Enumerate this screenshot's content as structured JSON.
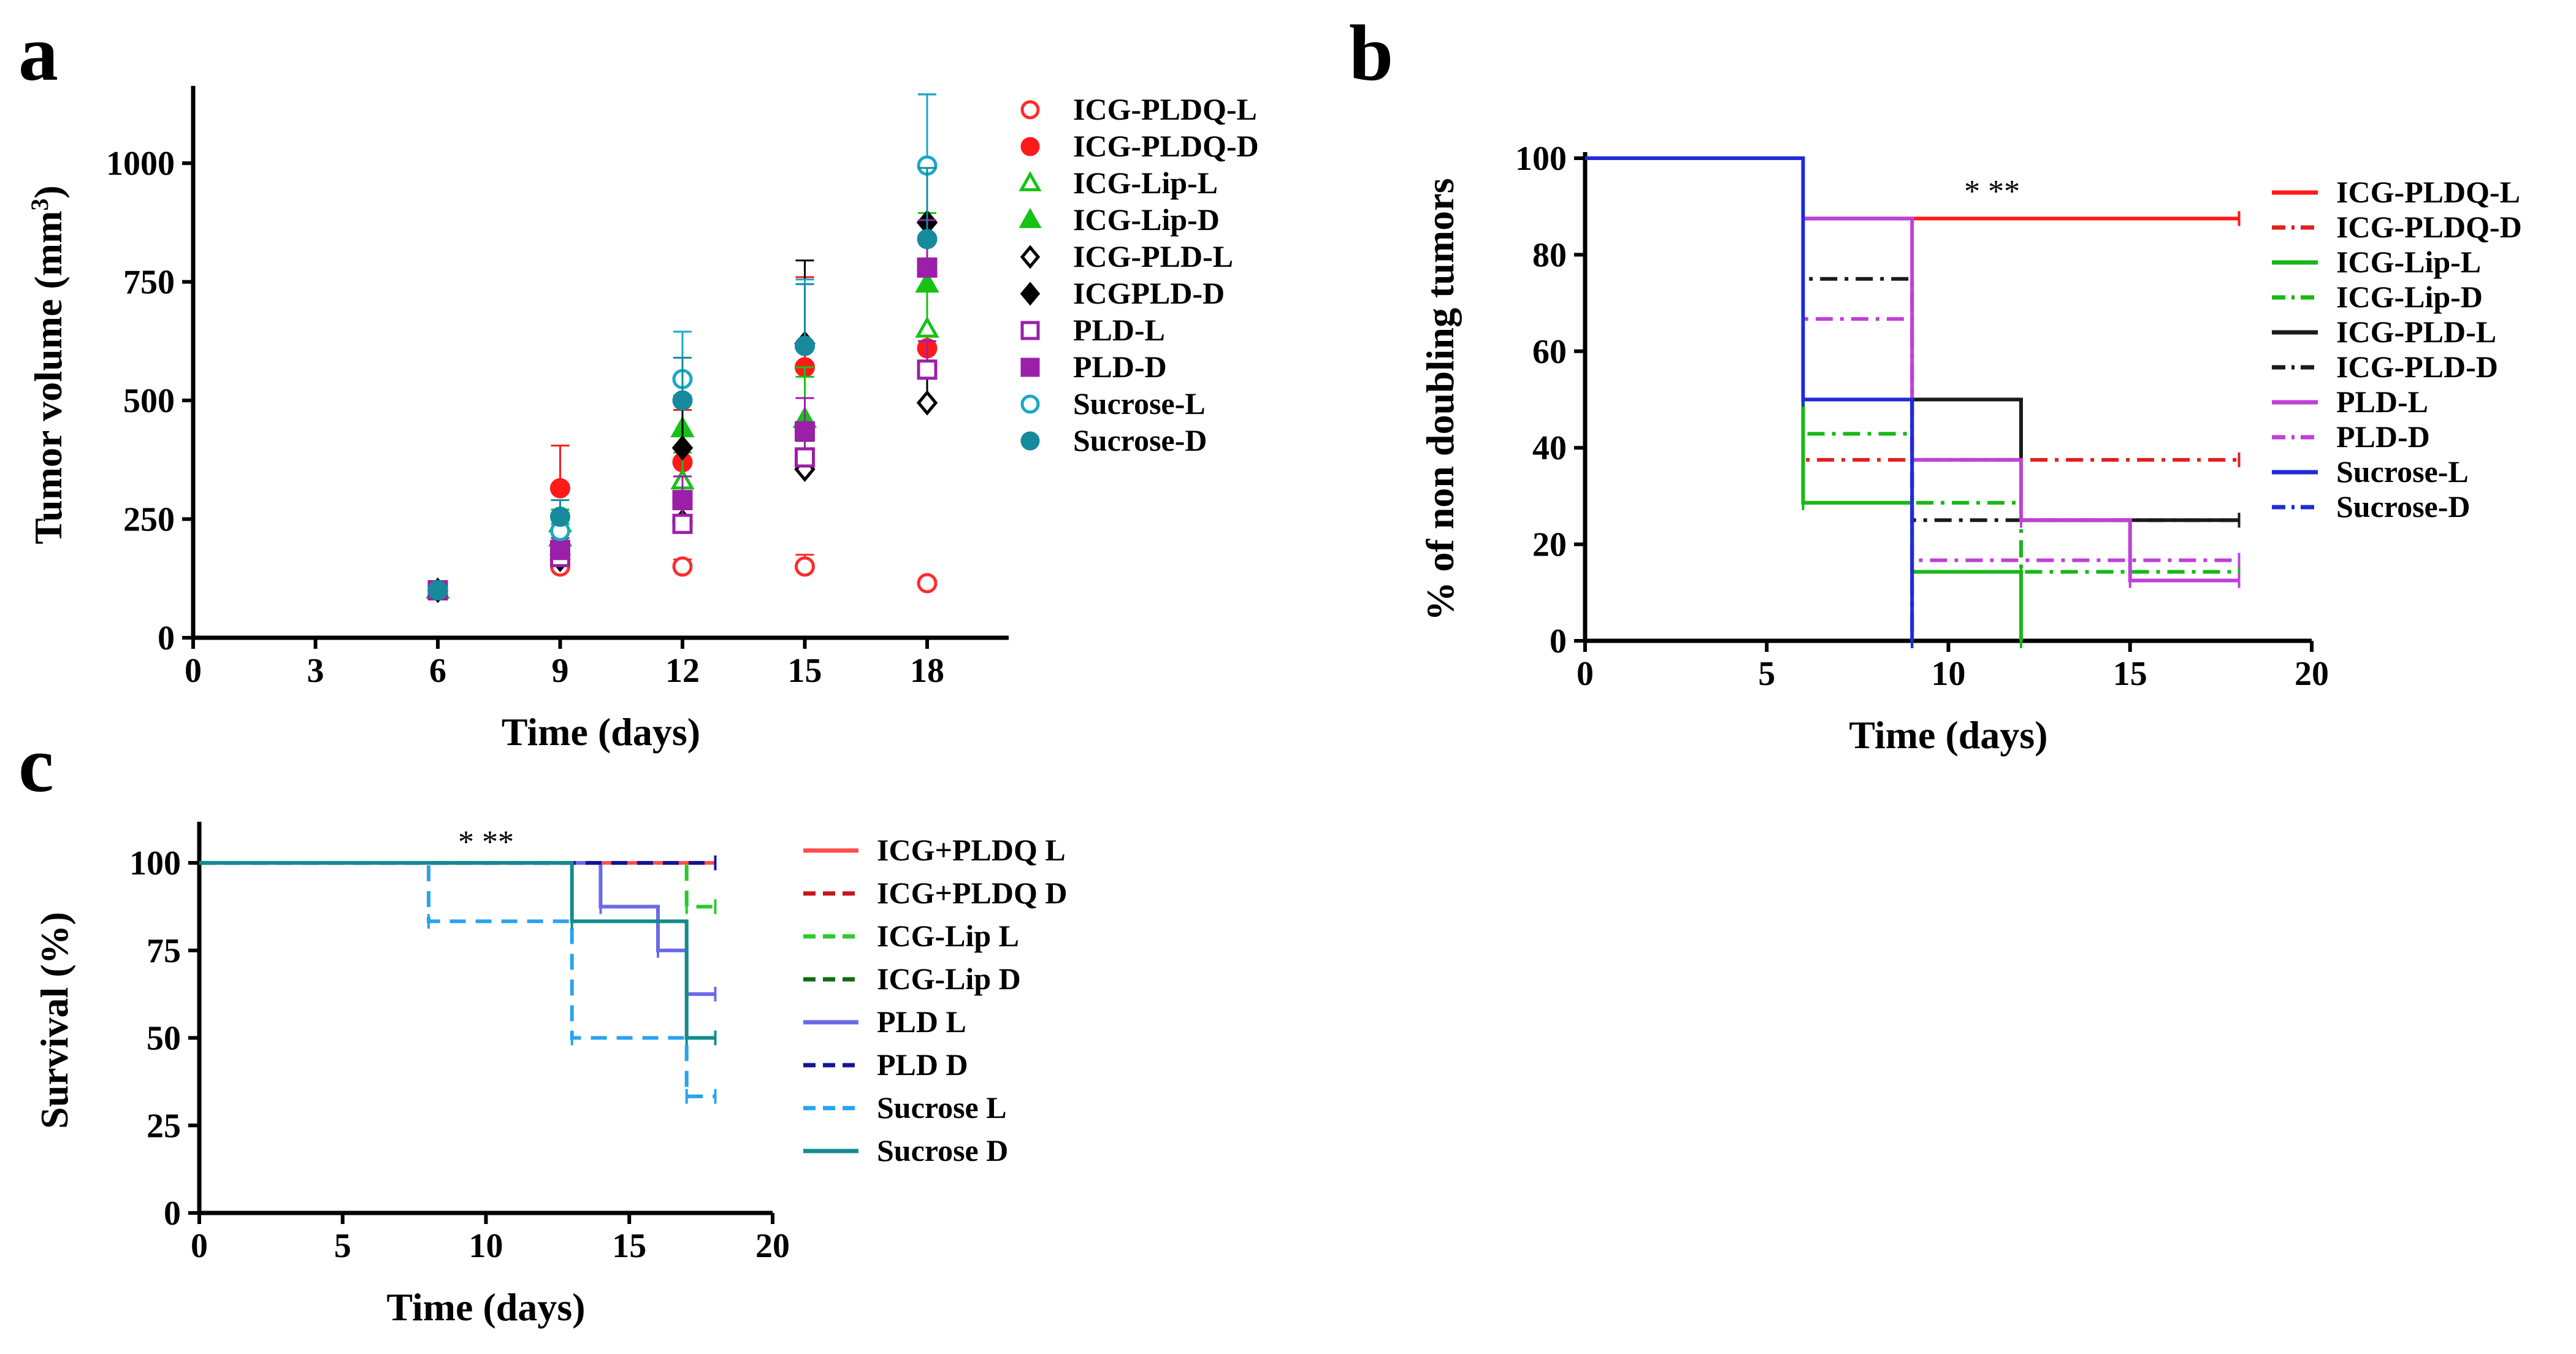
{
  "chart_data": [
    {
      "panel": "a",
      "type": "scatter",
      "xlabel": "Time (days)",
      "ylabel": "Tumor volume (mm3)",
      "xlim": [
        0,
        20
      ],
      "ylim": [
        0,
        1150
      ],
      "xticks": [
        0,
        3,
        6,
        9,
        12,
        15,
        18
      ],
      "yticks": [
        0,
        250,
        500,
        750,
        1000
      ],
      "legend_position": "right",
      "series": [
        {
          "name": "ICG-PLDQ-L",
          "color": "#ff2b2b",
          "marker": "circle-open",
          "x": [
            6,
            9,
            12,
            15,
            18
          ],
          "y": [
            100,
            150,
            150,
            150,
            115
          ],
          "err": [
            0,
            10,
            15,
            25,
            0
          ]
        },
        {
          "name": "ICG-PLDQ-D",
          "color": "#ff1a1a",
          "marker": "circle-filled",
          "x": [
            6,
            9,
            12,
            15,
            18
          ],
          "y": [
            100,
            315,
            370,
            570,
            610
          ],
          "err": [
            0,
            90,
            110,
            190,
            160
          ]
        },
        {
          "name": "ICG-Lip-L",
          "color": "#16c216",
          "marker": "triangle-open",
          "x": [
            6,
            9,
            12,
            15,
            18
          ],
          "y": [
            100,
            210,
            330,
            460,
            650
          ],
          "err": [
            0,
            30,
            60,
            90,
            120
          ]
        },
        {
          "name": "ICG-Lip-D",
          "color": "#16c216",
          "marker": "triangle-filled",
          "x": [
            6,
            9,
            12,
            15,
            18
          ],
          "y": [
            100,
            240,
            440,
            460,
            745
          ],
          "err": [
            0,
            30,
            70,
            110,
            150
          ]
        },
        {
          "name": "ICG-PLD-L",
          "color": "#000000",
          "marker": "diamond-open",
          "x": [
            6,
            9,
            12,
            15,
            18
          ],
          "y": [
            100,
            165,
            245,
            355,
            495
          ],
          "err": [
            0,
            20,
            40,
            60,
            80
          ]
        },
        {
          "name": "ICGPLD-D",
          "color": "#000000",
          "marker": "diamond-filled",
          "x": [
            6,
            9,
            12,
            15,
            18
          ],
          "y": [
            100,
            175,
            400,
            620,
            875
          ],
          "err": [
            0,
            25,
            100,
            175,
            270
          ]
        },
        {
          "name": "PLD-L",
          "color": "#9b1fa8",
          "marker": "square-open",
          "x": [
            6,
            9,
            12,
            15,
            18
          ],
          "y": [
            100,
            170,
            240,
            380,
            565
          ],
          "err": [
            0,
            20,
            40,
            50,
            60
          ]
        },
        {
          "name": "PLD-D",
          "color": "#9b1fa8",
          "marker": "square-filled",
          "x": [
            6,
            9,
            12,
            15,
            18
          ],
          "y": [
            100,
            185,
            290,
            435,
            780
          ],
          "err": [
            0,
            25,
            50,
            70,
            100
          ]
        },
        {
          "name": "Sucrose-L",
          "color": "#17a9c9",
          "marker": "circle-open",
          "x": [
            6,
            9,
            12,
            15,
            18
          ],
          "y": [
            100,
            225,
            545,
            615,
            995
          ],
          "err": [
            0,
            35,
            100,
            140,
            150
          ]
        },
        {
          "name": "Sucrose-D",
          "color": "#168a9c",
          "marker": "circle-filled",
          "x": [
            6,
            9,
            12,
            15,
            18
          ],
          "y": [
            100,
            255,
            500,
            615,
            840
          ],
          "err": [
            0,
            35,
            90,
            130,
            150
          ]
        }
      ]
    },
    {
      "panel": "b",
      "type": "line",
      "xlabel": "Time (days)",
      "ylabel": "% of non doubling tumors",
      "xlim": [
        0,
        20
      ],
      "ylim": [
        0,
        100
      ],
      "xticks": [
        0,
        5,
        10,
        15,
        20
      ],
      "yticks": [
        0,
        20,
        40,
        60,
        80,
        100
      ],
      "annotation": "* **",
      "annotation_x": 11.2,
      "annotation_y": 91,
      "legend_position": "right",
      "series": [
        {
          "name": "ICG-PLDQ-L",
          "color": "#ff1a1a",
          "dash": "solid",
          "x": [
            0,
            6,
            18
          ],
          "y": [
            100,
            87.5,
            87.5
          ]
        },
        {
          "name": "ICG-PLDQ-D",
          "color": "#e02020",
          "dash": "dashdot",
          "x": [
            0,
            6,
            18
          ],
          "y": [
            100,
            37.5,
            37.5
          ]
        },
        {
          "name": "ICG-Lip-L",
          "color": "#16b816",
          "dash": "solid",
          "x": [
            0,
            6,
            9,
            12
          ],
          "y": [
            100,
            28.6,
            14.3,
            0
          ]
        },
        {
          "name": "ICG-Lip-D",
          "color": "#16b816",
          "dash": "dashdot",
          "x": [
            0,
            6,
            9,
            12,
            18
          ],
          "y": [
            100,
            42.9,
            28.6,
            14.3,
            14.3
          ]
        },
        {
          "name": "ICG-PLD-L",
          "color": "#1a1a1a",
          "dash": "solid",
          "x": [
            0,
            6,
            12,
            18
          ],
          "y": [
            100,
            50,
            25,
            25
          ]
        },
        {
          "name": "ICG-PLD-D",
          "color": "#1a1a1a",
          "dash": "dashdot",
          "x": [
            0,
            6,
            9,
            18
          ],
          "y": [
            100,
            75,
            25,
            25
          ]
        },
        {
          "name": "PLD-L",
          "color": "#c040d8",
          "dash": "solid",
          "x": [
            0,
            6,
            9,
            12,
            15,
            18
          ],
          "y": [
            100,
            87.5,
            37.5,
            25,
            12.5,
            12.5
          ]
        },
        {
          "name": "PLD-D",
          "color": "#c040d8",
          "dash": "dashdot",
          "x": [
            0,
            6,
            9,
            18
          ],
          "y": [
            100,
            66.7,
            16.7,
            16.7
          ]
        },
        {
          "name": "Sucrose-L",
          "color": "#1f2bd8",
          "dash": "solid",
          "x": [
            0,
            6,
            9
          ],
          "y": [
            100,
            50,
            0
          ]
        },
        {
          "name": "Sucrose-D",
          "color": "#1f2bd8",
          "dash": "dashdot",
          "x": [
            0,
            6,
            9
          ],
          "y": [
            100,
            50,
            0
          ]
        }
      ]
    },
    {
      "panel": "c",
      "type": "line",
      "xlabel": "Time (days)",
      "ylabel": "Survival (%)",
      "xlim": [
        0,
        20
      ],
      "ylim": [
        0,
        110
      ],
      "xticks": [
        0,
        5,
        10,
        15,
        20
      ],
      "yticks": [
        0,
        25,
        50,
        75,
        100
      ],
      "annotation": "* **",
      "annotation_x": 10,
      "annotation_y": 103,
      "legend_position": "right",
      "series": [
        {
          "name": "ICG+PLDQ L",
          "color": "#ff4d4d",
          "dash": "solid",
          "x": [
            0,
            18
          ],
          "y": [
            100,
            100
          ]
        },
        {
          "name": "ICG+PLDQ D",
          "color": "#c8141e",
          "dash": "dashed",
          "x": [
            0,
            18
          ],
          "y": [
            100,
            100
          ]
        },
        {
          "name": "ICG-Lip L",
          "color": "#2cc92c",
          "dash": "dashed",
          "x": [
            0,
            17,
            18
          ],
          "y": [
            100,
            87.5,
            87.5
          ]
        },
        {
          "name": "ICG-Lip D",
          "color": "#106b10",
          "dash": "dashed",
          "x": [
            0,
            18
          ],
          "y": [
            100,
            100
          ]
        },
        {
          "name": "PLD L",
          "color": "#6a6ae8",
          "dash": "solid",
          "x": [
            0,
            14,
            16,
            17,
            18
          ],
          "y": [
            100,
            87.5,
            75,
            62.5,
            62.5
          ]
        },
        {
          "name": "PLD D",
          "color": "#141496",
          "dash": "dashed",
          "x": [
            0,
            18
          ],
          "y": [
            100,
            100
          ]
        },
        {
          "name": "Sucrose L",
          "color": "#29a3f0",
          "dash": "dashed",
          "x": [
            0,
            8,
            13,
            17,
            18
          ],
          "y": [
            100,
            83.3,
            50,
            33.3,
            33.3
          ]
        },
        {
          "name": "Sucrose D",
          "color": "#138c8c",
          "dash": "solid",
          "x": [
            0,
            13,
            17,
            18
          ],
          "y": [
            100,
            83.3,
            50,
            50
          ]
        }
      ]
    }
  ]
}
